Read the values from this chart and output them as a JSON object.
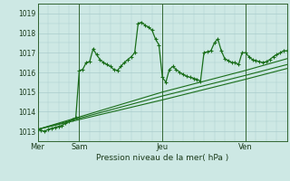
{
  "xlabel": "Pression niveau de la mer( hPa )",
  "bg_color": "#cde8e4",
  "grid_color": "#aacccc",
  "line_color": "#1a6e1a",
  "ylim": [
    1012.5,
    1019.5
  ],
  "yticks": [
    1013,
    1014,
    1015,
    1016,
    1017,
    1018,
    1019
  ],
  "day_labels": [
    "Mer",
    "Sam",
    "Jeu",
    "Ven"
  ],
  "day_positions": [
    0,
    12,
    36,
    60
  ],
  "total_points": 73,
  "series1_x": [
    0,
    1,
    2,
    3,
    4,
    5,
    6,
    7,
    8,
    9,
    10,
    11,
    12,
    13,
    14,
    15,
    16,
    17,
    18,
    19,
    20,
    21,
    22,
    23,
    24,
    25,
    26,
    27,
    28,
    29,
    30,
    31,
    32,
    33,
    34,
    35,
    36,
    37,
    38,
    39,
    40,
    41,
    42,
    43,
    44,
    45,
    46,
    47,
    48,
    49,
    50,
    51,
    52,
    53,
    54,
    55,
    56,
    57,
    58,
    59,
    60,
    61,
    62,
    63,
    64,
    65,
    66,
    67,
    68,
    69,
    70,
    71,
    72
  ],
  "series1_y": [
    1013.1,
    1013.05,
    1013.0,
    1013.1,
    1013.15,
    1013.2,
    1013.25,
    1013.3,
    1013.4,
    1013.5,
    1013.6,
    1013.7,
    1016.1,
    1016.15,
    1016.5,
    1016.55,
    1017.2,
    1016.9,
    1016.65,
    1016.5,
    1016.4,
    1016.3,
    1016.15,
    1016.1,
    1016.3,
    1016.5,
    1016.65,
    1016.8,
    1017.0,
    1018.5,
    1018.55,
    1018.4,
    1018.3,
    1018.15,
    1017.7,
    1017.4,
    1015.75,
    1015.5,
    1016.15,
    1016.3,
    1016.15,
    1016.0,
    1015.9,
    1015.8,
    1015.75,
    1015.7,
    1015.65,
    1015.55,
    1017.0,
    1017.05,
    1017.1,
    1017.5,
    1017.7,
    1017.1,
    1016.7,
    1016.6,
    1016.5,
    1016.5,
    1016.4,
    1017.0,
    1017.0,
    1016.8,
    1016.65,
    1016.6,
    1016.55,
    1016.5,
    1016.55,
    1016.65,
    1016.8,
    1016.9,
    1017.0,
    1017.1,
    1017.1
  ],
  "series2_x": [
    0,
    36,
    60,
    72
  ],
  "series2_y": [
    1013.1,
    1015.0,
    1016.1,
    1016.7
  ],
  "series3_x": [
    0,
    36,
    60,
    72
  ],
  "series3_y": [
    1013.1,
    1014.8,
    1015.85,
    1016.4
  ],
  "series4_x": [
    0,
    36,
    60,
    72
  ],
  "series4_y": [
    1013.1,
    1014.6,
    1015.65,
    1016.2
  ]
}
